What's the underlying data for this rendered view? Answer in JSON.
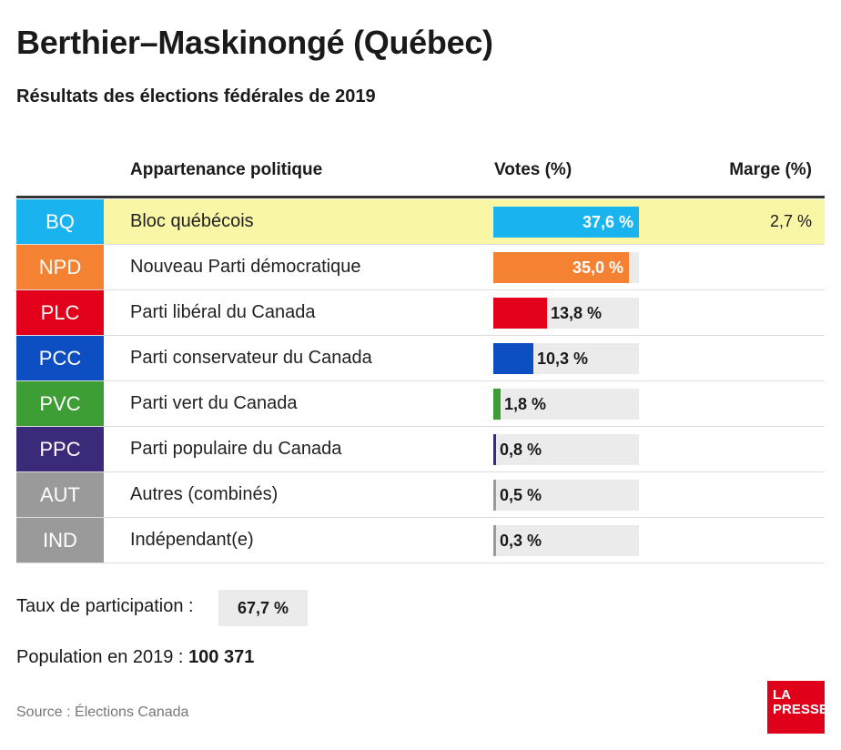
{
  "title": "Berthier–Maskinongé (Québec)",
  "subtitle": "Résultats des élections fédérales de 2019",
  "headers": {
    "party": "Appartenance politique",
    "votes": "Votes (%)",
    "margin": "Marge (%)"
  },
  "chart_data": {
    "type": "bar",
    "title": "Berthier–Maskinongé (Québec)",
    "subtitle": "Résultats des élections fédérales de 2019",
    "xlabel": "Appartenance politique",
    "ylabel": "Votes (%)",
    "ylim": [
      0,
      37.6
    ],
    "categories": [
      "BQ",
      "NPD",
      "PLC",
      "PCC",
      "PVC",
      "PPC",
      "AUT",
      "IND"
    ],
    "rows": [
      {
        "code": "BQ",
        "name": "Bloc québécois",
        "value": 37.6,
        "label": "37,6 %",
        "color": "#19b3f0",
        "winner": true,
        "margin": "2,7 %"
      },
      {
        "code": "NPD",
        "name": "Nouveau Parti démocratique",
        "value": 35.0,
        "label": "35,0 %",
        "color": "#f58233"
      },
      {
        "code": "PLC",
        "name": "Parti libéral du Canada",
        "value": 13.8,
        "label": "13,8 %",
        "color": "#e3001b"
      },
      {
        "code": "PCC",
        "name": "Parti conservateur du Canada",
        "value": 10.3,
        "label": "10,3 %",
        "color": "#0d4fc2"
      },
      {
        "code": "PVC",
        "name": "Parti vert du Canada",
        "value": 1.8,
        "label": "1,8 %",
        "color": "#3e9e36"
      },
      {
        "code": "PPC",
        "name": "Parti populaire du Canada",
        "value": 0.8,
        "label": "0,8 %",
        "color": "#3b2a7a"
      },
      {
        "code": "AUT",
        "name": "Autres (combinés)",
        "value": 0.5,
        "label": "0,5 %",
        "color": "#9a9a9a"
      },
      {
        "code": "IND",
        "name": "Indépendant(e)",
        "value": 0.3,
        "label": "0,3 %",
        "color": "#9a9a9a"
      }
    ]
  },
  "turnout": {
    "label": "Taux de participation :",
    "value": "67,7 %"
  },
  "population": {
    "label": "Population en 2019 :",
    "value": "100 371"
  },
  "source": "Source : Élections Canada",
  "logo": {
    "line1": "LA",
    "line2": "PRESSE",
    "color": "#e1001a"
  }
}
